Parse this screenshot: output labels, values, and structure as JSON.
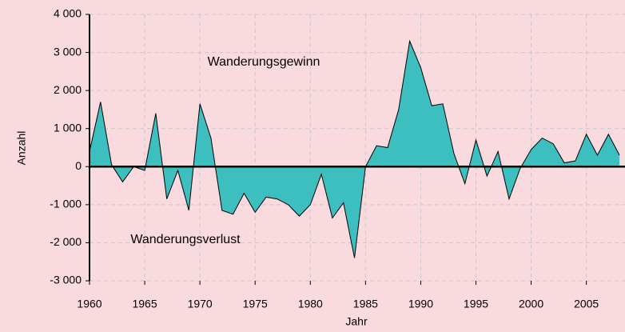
{
  "chart_data": {
    "type": "area",
    "annotations": [
      "Wanderungsgewinn",
      "Wanderungsverlust"
    ],
    "xlabel": "Jahr",
    "ylabel": "Anzahl",
    "x": [
      1960,
      1961,
      1962,
      1963,
      1964,
      1965,
      1966,
      1967,
      1968,
      1969,
      1970,
      1971,
      1972,
      1973,
      1974,
      1975,
      1976,
      1977,
      1978,
      1979,
      1980,
      1981,
      1982,
      1983,
      1984,
      1985,
      1986,
      1987,
      1988,
      1989,
      1990,
      1991,
      1992,
      1993,
      1994,
      1995,
      1996,
      1997,
      1998,
      1999,
      2000,
      2001,
      2002,
      2003,
      2004,
      2005,
      2006,
      2007,
      2008
    ],
    "values": [
      400,
      1700,
      50,
      -400,
      0,
      -100,
      1400,
      -850,
      -100,
      -1150,
      1650,
      750,
      -1150,
      -1250,
      -700,
      -1200,
      -800,
      -850,
      -1000,
      -1300,
      -1000,
      -200,
      -1350,
      -950,
      -2400,
      0,
      550,
      500,
      1500,
      3300,
      2600,
      1600,
      1650,
      350,
      -450,
      700,
      -250,
      400,
      -850,
      -50,
      450,
      750,
      600,
      100,
      150,
      850,
      300,
      850,
      300
    ],
    "color": "#3dbfbf",
    "xlim": [
      1960,
      2008.5
    ],
    "ylim": [
      -3000,
      4000
    ],
    "xticks": [
      1960,
      1965,
      1970,
      1975,
      1980,
      1985,
      1990,
      1995,
      2000,
      2005
    ],
    "yticks": [
      {
        "value": -3000,
        "label": "-3 000"
      },
      {
        "value": -2000,
        "label": "-2 000"
      },
      {
        "value": -1000,
        "label": "-1 000"
      },
      0,
      {
        "value": 1000,
        "label": "1 000"
      },
      {
        "value": 2000,
        "label": "2 000"
      },
      {
        "value": 3000,
        "label": "3 000"
      },
      {
        "value": 4000,
        "label": "4 000"
      }
    ],
    "grid": true
  }
}
